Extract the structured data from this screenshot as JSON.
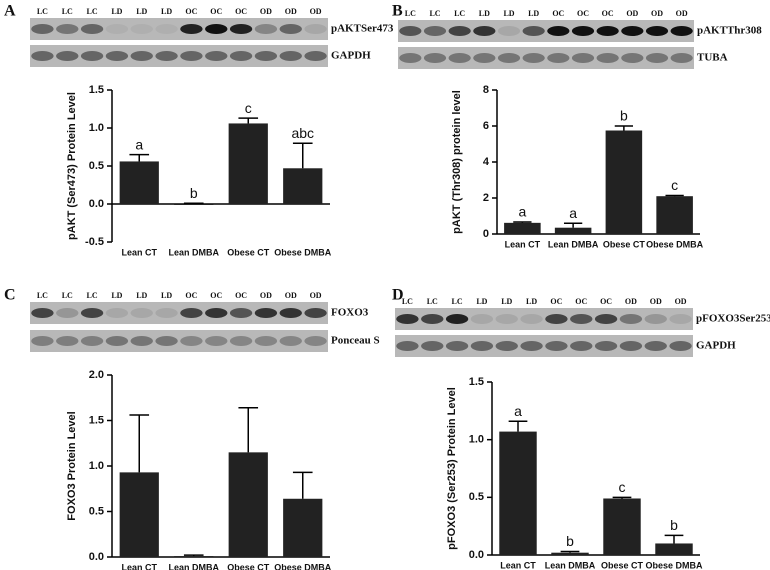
{
  "chart_data": [
    {
      "type": "bar",
      "panel": "A",
      "ylabel": "pAKT (Ser473) Protein Level",
      "categories": [
        "Lean CT",
        "Lean DMBA",
        "Obese CT",
        "Obese DMBA"
      ],
      "values": [
        0.56,
        0.0,
        1.06,
        0.47
      ],
      "errors": [
        0.09,
        0.01,
        0.07,
        0.33
      ],
      "letters": [
        "a",
        "b",
        "c",
        "abc"
      ],
      "color": "#222222",
      "ylim": [
        -0.5,
        1.5
      ],
      "yticks": [
        -0.5,
        {
          "value": 0,
          "label": "0.0"
        },
        0.5,
        {
          "value": 1,
          "label": "1.0"
        },
        1.5
      ],
      "lanes": [
        "LC",
        "LC",
        "LC",
        "LD",
        "LD",
        "LD",
        "OC",
        "OC",
        "OC",
        "OD",
        "OD",
        "OD"
      ],
      "blot_labels": [
        "pAKTSer473",
        "GAPDH"
      ]
    },
    {
      "type": "bar",
      "panel": "B",
      "ylabel": "pAKT (Thr308) protein level",
      "categories": [
        "Lean CT",
        "Lean DMBA",
        "Obese CT",
        "Obese DMBA"
      ],
      "values": [
        0.62,
        0.35,
        5.75,
        2.1
      ],
      "errors": [
        0.05,
        0.25,
        0.25,
        0.04
      ],
      "letters": [
        "a",
        "a",
        "b",
        "c"
      ],
      "color": "#222222",
      "ylim": [
        0,
        8
      ],
      "yticks": [
        0,
        2,
        4,
        6,
        8
      ],
      "lanes": [
        "LC",
        "LC",
        "LC",
        "LD",
        "LD",
        "LD",
        "OC",
        "OC",
        "OC",
        "OD",
        "OD",
        "OD"
      ],
      "blot_labels": [
        "pAKTThr308",
        "TUBA"
      ]
    },
    {
      "type": "bar",
      "panel": "C",
      "ylabel": "FOXO3  Protein Level",
      "categories": [
        "Lean CT",
        "Lean DMBA",
        "Obese CT",
        "Obese DMBA"
      ],
      "values": [
        0.93,
        0.01,
        1.15,
        0.64
      ],
      "errors": [
        0.63,
        0.01,
        0.49,
        0.29
      ],
      "color": "#222222",
      "ylim": [
        0,
        2
      ],
      "yticks": [
        {
          "value": 0,
          "label": "0.0"
        },
        0.5,
        {
          "value": 1,
          "label": "1.0"
        },
        1.5,
        {
          "value": 2,
          "label": "2.0"
        }
      ],
      "lanes": [
        "LC",
        "LC",
        "LC",
        "LD",
        "LD",
        "LD",
        "OC",
        "OC",
        "OC",
        "OD",
        "OD",
        "OD"
      ],
      "blot_labels": [
        "FOXO3",
        "Ponceau S"
      ]
    },
    {
      "type": "bar",
      "panel": "D",
      "ylabel": "pFOXO3  (Ser253) Protein Level",
      "categories": [
        "Lean CT",
        "Lean DMBA",
        "Obese CT",
        "Obese DMBA"
      ],
      "values": [
        1.07,
        0.02,
        0.49,
        0.1
      ],
      "errors": [
        0.09,
        0.01,
        0.01,
        0.07
      ],
      "letters": [
        "a",
        "b",
        "c",
        "b"
      ],
      "color": "#222222",
      "ylim": [
        0,
        1.5
      ],
      "yticks": [
        {
          "value": 0,
          "label": "0.0"
        },
        0.5,
        {
          "value": 1,
          "label": "1.0"
        },
        1.5
      ],
      "lanes": [
        "LC",
        "LC",
        "LC",
        "LD",
        "LD",
        "LD",
        "OC",
        "OC",
        "OC",
        "OD",
        "OD",
        "OD"
      ],
      "blot_labels": [
        "pFOXO3Ser253",
        "GAPDH"
      ]
    }
  ]
}
